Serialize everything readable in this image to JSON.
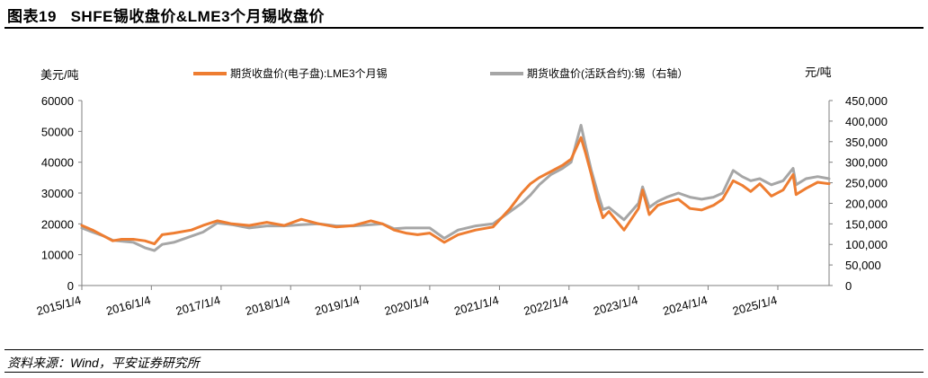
{
  "figure": {
    "number_label": "图表19",
    "title": "SHFE锡收盘价&LME3个月锡收盘价",
    "source": "资料来源：Wind，平安证券研究所"
  },
  "colors": {
    "lme_series": "#ee7d31",
    "shfe_series": "#a6a6a6",
    "axis": "#7f7f7f"
  },
  "chart_data": {
    "type": "line",
    "left_axis": {
      "unit_label": "美元/吨",
      "ylim": [
        0,
        60000
      ],
      "ticks": [
        "0",
        "10000",
        "20000",
        "30000",
        "40000",
        "50000",
        "60000"
      ]
    },
    "right_axis": {
      "unit_label": "元/吨",
      "ylim": [
        0,
        450000
      ],
      "ticks": [
        "0",
        "50,000",
        "100,000",
        "150,000",
        "200,000",
        "250,000",
        "300,000",
        "350,000",
        "400,000",
        "450,000"
      ]
    },
    "x_tick_labels": [
      "2015/1/4",
      "2016/1/4",
      "2017/1/4",
      "2018/1/4",
      "2019/1/4",
      "2020/1/4",
      "2021/1/4",
      "2022/1/4",
      "2023/1/4",
      "2024/1/4",
      "2025/1/4"
    ],
    "x_range": [
      "2015/1/4",
      "2025/9/30"
    ],
    "legend_position": "top",
    "gridlines": false,
    "series": [
      {
        "name": "期货收盘价(电子盘):LME3个月锡",
        "axis": "left",
        "points": [
          [
            "2015/1/4",
            19500
          ],
          [
            "2015/3/1",
            18000
          ],
          [
            "2015/5/1",
            16000
          ],
          [
            "2015/6/15",
            14500
          ],
          [
            "2015/8/1",
            15000
          ],
          [
            "2015/10/1",
            15000
          ],
          [
            "2015/12/1",
            14500
          ],
          [
            "2016/1/20",
            13500
          ],
          [
            "2016/3/1",
            16500
          ],
          [
            "2016/5/1",
            17000
          ],
          [
            "2016/8/1",
            18000
          ],
          [
            "2016/10/1",
            19500
          ],
          [
            "2016/12/15",
            21000
          ],
          [
            "2017/3/1",
            20000
          ],
          [
            "2017/6/1",
            19500
          ],
          [
            "2017/9/1",
            20500
          ],
          [
            "2017/12/1",
            19500
          ],
          [
            "2018/3/1",
            21500
          ],
          [
            "2018/6/1",
            20000
          ],
          [
            "2018/9/1",
            19000
          ],
          [
            "2018/12/1",
            19500
          ],
          [
            "2019/3/1",
            21000
          ],
          [
            "2019/5/1",
            20000
          ],
          [
            "2019/7/1",
            18000
          ],
          [
            "2019/9/1",
            17000
          ],
          [
            "2019/11/1",
            16500
          ],
          [
            "2020/1/4",
            17000
          ],
          [
            "2020/3/20",
            14000
          ],
          [
            "2020/6/1",
            16500
          ],
          [
            "2020/9/1",
            18000
          ],
          [
            "2020/12/1",
            19000
          ],
          [
            "2021/1/15",
            22000
          ],
          [
            "2021/3/1",
            25000
          ],
          [
            "2021/5/1",
            30000
          ],
          [
            "2021/6/15",
            33000
          ],
          [
            "2021/8/1",
            35000
          ],
          [
            "2021/10/1",
            37000
          ],
          [
            "2021/12/1",
            39000
          ],
          [
            "2022/1/15",
            41000
          ],
          [
            "2022/3/8",
            48000
          ],
          [
            "2022/4/1",
            43000
          ],
          [
            "2022/5/1",
            36000
          ],
          [
            "2022/6/1",
            28000
          ],
          [
            "2022/7/1",
            22000
          ],
          [
            "2022/8/1",
            24000
          ],
          [
            "2022/10/20",
            18000
          ],
          [
            "2023/1/4",
            25000
          ],
          [
            "2023/1/25",
            31000
          ],
          [
            "2023/3/1",
            23000
          ],
          [
            "2023/4/15",
            26000
          ],
          [
            "2023/6/1",
            27000
          ],
          [
            "2023/8/1",
            28000
          ],
          [
            "2023/10/1",
            25000
          ],
          [
            "2023/12/1",
            24500
          ],
          [
            "2024/2/1",
            26000
          ],
          [
            "2024/3/20",
            28000
          ],
          [
            "2024/5/15",
            34000
          ],
          [
            "2024/7/1",
            32500
          ],
          [
            "2024/8/15",
            30500
          ],
          [
            "2024/10/1",
            33000
          ],
          [
            "2024/12/1",
            29000
          ],
          [
            "2025/2/1",
            31000
          ],
          [
            "2025/3/25",
            36000
          ],
          [
            "2025/4/10",
            29500
          ],
          [
            "2025/6/1",
            31500
          ],
          [
            "2025/8/1",
            33500
          ],
          [
            "2025/9/30",
            33000
          ]
        ]
      },
      {
        "name": "期货收盘价(活跃合约):锡（右轴）",
        "axis": "right",
        "points": [
          [
            "2015/1/4",
            140000
          ],
          [
            "2015/3/1",
            130000
          ],
          [
            "2015/5/1",
            120000
          ],
          [
            "2015/6/15",
            110000
          ],
          [
            "2015/8/1",
            108000
          ],
          [
            "2015/10/1",
            105000
          ],
          [
            "2015/12/1",
            92000
          ],
          [
            "2016/1/20",
            85000
          ],
          [
            "2016/3/1",
            100000
          ],
          [
            "2016/5/1",
            105000
          ],
          [
            "2016/8/1",
            120000
          ],
          [
            "2016/10/1",
            130000
          ],
          [
            "2016/12/15",
            152000
          ],
          [
            "2017/3/1",
            148000
          ],
          [
            "2017/6/1",
            140000
          ],
          [
            "2017/9/1",
            145000
          ],
          [
            "2017/12/1",
            145000
          ],
          [
            "2018/3/1",
            148000
          ],
          [
            "2018/6/1",
            150000
          ],
          [
            "2018/9/1",
            145000
          ],
          [
            "2018/12/1",
            145000
          ],
          [
            "2019/3/1",
            148000
          ],
          [
            "2019/5/1",
            150000
          ],
          [
            "2019/7/1",
            138000
          ],
          [
            "2019/9/1",
            140000
          ],
          [
            "2019/11/1",
            140000
          ],
          [
            "2020/1/4",
            140000
          ],
          [
            "2020/3/20",
            115000
          ],
          [
            "2020/6/1",
            135000
          ],
          [
            "2020/9/1",
            145000
          ],
          [
            "2020/12/1",
            150000
          ],
          [
            "2021/1/15",
            165000
          ],
          [
            "2021/3/1",
            180000
          ],
          [
            "2021/5/1",
            200000
          ],
          [
            "2021/6/15",
            220000
          ],
          [
            "2021/8/1",
            245000
          ],
          [
            "2021/10/1",
            270000
          ],
          [
            "2021/12/1",
            285000
          ],
          [
            "2022/1/15",
            300000
          ],
          [
            "2022/3/8",
            390000
          ],
          [
            "2022/4/1",
            340000
          ],
          [
            "2022/5/1",
            280000
          ],
          [
            "2022/6/1",
            230000
          ],
          [
            "2022/7/1",
            185000
          ],
          [
            "2022/8/1",
            190000
          ],
          [
            "2022/10/20",
            160000
          ],
          [
            "2023/1/4",
            200000
          ],
          [
            "2023/1/25",
            240000
          ],
          [
            "2023/3/1",
            190000
          ],
          [
            "2023/4/15",
            205000
          ],
          [
            "2023/6/1",
            215000
          ],
          [
            "2023/8/1",
            225000
          ],
          [
            "2023/10/1",
            215000
          ],
          [
            "2023/12/1",
            210000
          ],
          [
            "2024/2/1",
            215000
          ],
          [
            "2024/3/20",
            225000
          ],
          [
            "2024/5/15",
            280000
          ],
          [
            "2024/7/1",
            265000
          ],
          [
            "2024/8/15",
            255000
          ],
          [
            "2024/10/1",
            260000
          ],
          [
            "2024/12/1",
            245000
          ],
          [
            "2025/2/1",
            255000
          ],
          [
            "2025/3/25",
            285000
          ],
          [
            "2025/4/10",
            245000
          ],
          [
            "2025/6/1",
            260000
          ],
          [
            "2025/8/1",
            265000
          ],
          [
            "2025/9/30",
            260000
          ]
        ]
      }
    ]
  }
}
